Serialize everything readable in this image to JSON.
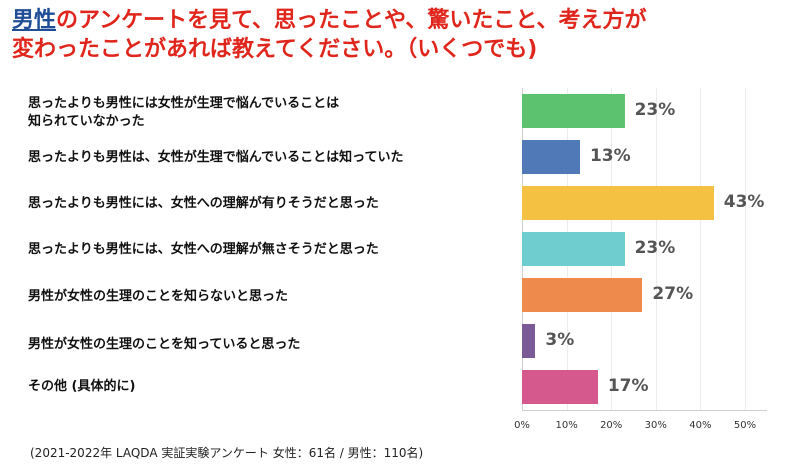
{
  "title": {
    "highlight": "男性",
    "line1_rest": "のアンケートを見て、思ったことや、驚いたこと、考え方が",
    "line2": "変わったことがあれば教えてください。（いくつでも)"
  },
  "chart_data": {
    "type": "bar",
    "orientation": "horizontal",
    "categories": [
      "思ったよりも男性には女性が生理で悩んでいることは知られていなかった",
      "思ったよりも男性は、女性が生理で悩んでいることは知っていた",
      "思ったよりも男性には、女性への理解が有りそうだと思った",
      "思ったよりも男性には、女性への理解が無さそうだと思った",
      "男性が女性の生理のことを知らないと思った",
      "男性が女性の生理のことを知っていると思った",
      "その他 (具体的に)"
    ],
    "label_lines": [
      [
        "思ったよりも男性には女性が生理で悩んでいることは",
        "知られていなかった"
      ],
      [
        "思ったよりも男性は、女性が生理で悩んでいることは知っていた"
      ],
      [
        "思ったよりも男性には、女性への理解が有りそうだと思った"
      ],
      [
        "思ったよりも男性には、女性への理解が無さそうだと思った"
      ],
      [
        "男性が女性の生理のことを知らないと思った"
      ],
      [
        "男性が女性の生理のことを知っていると思った"
      ],
      [
        "その他 (具体的に)"
      ]
    ],
    "values": [
      23,
      13,
      43,
      23,
      27,
      3,
      17
    ],
    "value_labels": [
      "23%",
      "13%",
      "43%",
      "23%",
      "27%",
      "3%",
      "17%"
    ],
    "colors": [
      "#5cc26f",
      "#5079b8",
      "#f5c143",
      "#6fcccf",
      "#ef8a4d",
      "#7a5a97",
      "#d6598e"
    ],
    "xlim": [
      0,
      55
    ],
    "xticks": [
      0,
      10,
      20,
      30,
      40,
      50
    ],
    "xtick_labels": [
      "0%",
      "10%",
      "20%",
      "30%",
      "40%",
      "50%"
    ],
    "grid": true
  },
  "footnote": "(2021-2022年 LAQDA 実証実験アンケート 女性：61名 / 男性：110名)"
}
